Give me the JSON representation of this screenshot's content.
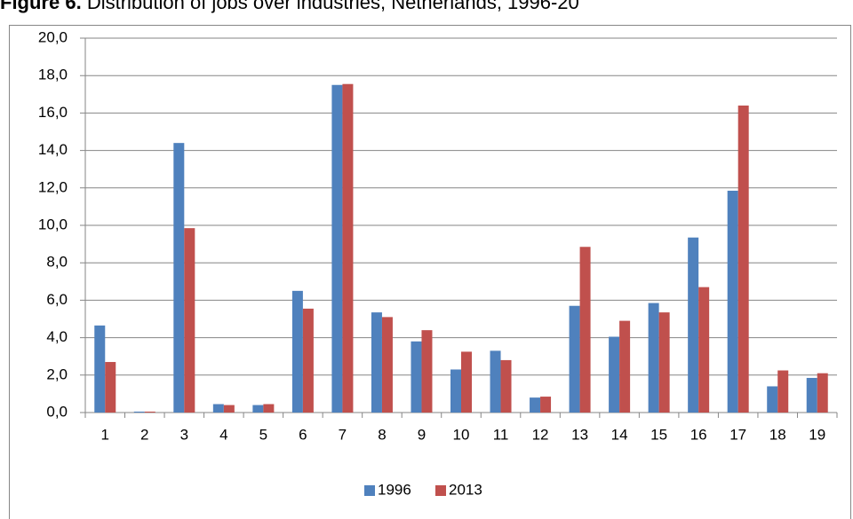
{
  "chart_data": {
    "type": "bar",
    "title_label": "Figure 6.",
    "title": "Distribution of jobs over industries, Netherlands, 1996-20",
    "categories": [
      "1",
      "2",
      "3",
      "4",
      "5",
      "6",
      "7",
      "8",
      "9",
      "10",
      "11",
      "12",
      "13",
      "14",
      "15",
      "16",
      "17",
      "18",
      "19"
    ],
    "series": [
      {
        "name": "1996",
        "color": "#4f81bd",
        "values": [
          4.65,
          0.05,
          14.4,
          0.45,
          0.4,
          6.5,
          17.5,
          5.35,
          3.8,
          2.3,
          3.3,
          0.8,
          5.7,
          4.05,
          5.85,
          9.35,
          11.85,
          1.4,
          1.85
        ]
      },
      {
        "name": "2013",
        "color": "#c0504d",
        "values": [
          2.7,
          0.05,
          9.85,
          0.4,
          0.45,
          5.55,
          17.55,
          5.1,
          4.4,
          3.25,
          2.8,
          0.85,
          8.85,
          4.9,
          5.35,
          6.7,
          16.4,
          2.25,
          2.1
        ]
      }
    ],
    "ylim": [
      0,
      20
    ],
    "yticks": [
      {
        "value": 0,
        "label": "0,0"
      },
      {
        "value": 2,
        "label": "2,0"
      },
      {
        "value": 4,
        "label": "4,0"
      },
      {
        "value": 6,
        "label": "6,0"
      },
      {
        "value": 8,
        "label": "8,0"
      },
      {
        "value": 10,
        "label": "10,0"
      },
      {
        "value": 12,
        "label": "12,0"
      },
      {
        "value": 14,
        "label": "14,0"
      },
      {
        "value": 16,
        "label": "16,0"
      },
      {
        "value": 18,
        "label": "18,0"
      },
      {
        "value": 20,
        "label": "20,0"
      }
    ],
    "grid": true,
    "legend": "bottom"
  }
}
